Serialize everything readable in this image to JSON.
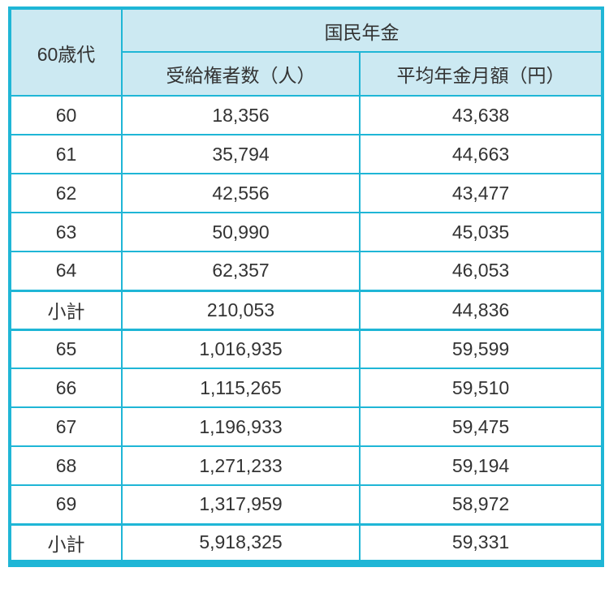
{
  "theme": {
    "border_color": "#1fb6d6",
    "header_bg": "#cce9f2",
    "text_color": "#333333"
  },
  "table": {
    "row_header": "60歳代",
    "group_header": "国民年金",
    "columns": [
      "受給権者数（人）",
      "平均年金月額（円）"
    ],
    "rows": [
      {
        "label": "60",
        "beneficiaries": "18,356",
        "amount": "43,638",
        "subtotal": false
      },
      {
        "label": "61",
        "beneficiaries": "35,794",
        "amount": "44,663",
        "subtotal": false
      },
      {
        "label": "62",
        "beneficiaries": "42,556",
        "amount": "43,477",
        "subtotal": false
      },
      {
        "label": "63",
        "beneficiaries": "50,990",
        "amount": "45,035",
        "subtotal": false
      },
      {
        "label": "64",
        "beneficiaries": "62,357",
        "amount": "46,053",
        "subtotal": false
      },
      {
        "label": "小計",
        "beneficiaries": "210,053",
        "amount": "44,836",
        "subtotal": true
      },
      {
        "label": "65",
        "beneficiaries": "1,016,935",
        "amount": "59,599",
        "subtotal": false
      },
      {
        "label": "66",
        "beneficiaries": "1,115,265",
        "amount": "59,510",
        "subtotal": false
      },
      {
        "label": "67",
        "beneficiaries": "1,196,933",
        "amount": "59,475",
        "subtotal": false
      },
      {
        "label": "68",
        "beneficiaries": "1,271,233",
        "amount": "59,194",
        "subtotal": false
      },
      {
        "label": "69",
        "beneficiaries": "1,317,959",
        "amount": "58,972",
        "subtotal": false
      },
      {
        "label": "小計",
        "beneficiaries": "5,918,325",
        "amount": "59,331",
        "subtotal": true
      }
    ]
  },
  "chart_data": {
    "type": "table",
    "title": "国民年金 60歳代",
    "columns": [
      "60歳代",
      "受給権者数（人）",
      "平均年金月額（円）"
    ],
    "rows": [
      [
        "60",
        18356,
        43638
      ],
      [
        "61",
        35794,
        44663
      ],
      [
        "62",
        42556,
        43477
      ],
      [
        "63",
        50990,
        45035
      ],
      [
        "64",
        62357,
        46053
      ],
      [
        "小計",
        210053,
        44836
      ],
      [
        "65",
        1016935,
        59599
      ],
      [
        "66",
        1115265,
        59510
      ],
      [
        "67",
        1196933,
        59475
      ],
      [
        "68",
        1271233,
        59194
      ],
      [
        "69",
        1317959,
        58972
      ],
      [
        "小計",
        5918325,
        59331
      ]
    ]
  }
}
